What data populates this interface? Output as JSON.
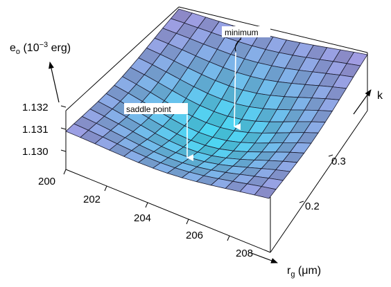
{
  "chart_data": {
    "type": "surface",
    "z_axis": {
      "label_main": "e",
      "label_sub": "o",
      "label_unit_pre": " (10",
      "label_sup": "−3",
      "label_unit_post": " erg)",
      "ticks": [
        "1.130",
        "1.131",
        "1.132"
      ]
    },
    "x_axis": {
      "label_main": "r",
      "label_sub": "g",
      "label_unit": " (μm)",
      "ticks": [
        "200",
        "202",
        "204",
        "206",
        "208"
      ]
    },
    "y_axis": {
      "label": "k",
      "ticks": [
        "0.2",
        "0.3"
      ]
    },
    "annotations": [
      {
        "id": "minimum",
        "text": "minimum"
      },
      {
        "id": "saddle",
        "text": "saddle point"
      }
    ],
    "grid": "14x14 mesh",
    "colors": {
      "surface_high": "#a896e0",
      "surface_low": "#4cd6f2",
      "mesh": "#1a1a2e",
      "box": "#000000"
    }
  }
}
